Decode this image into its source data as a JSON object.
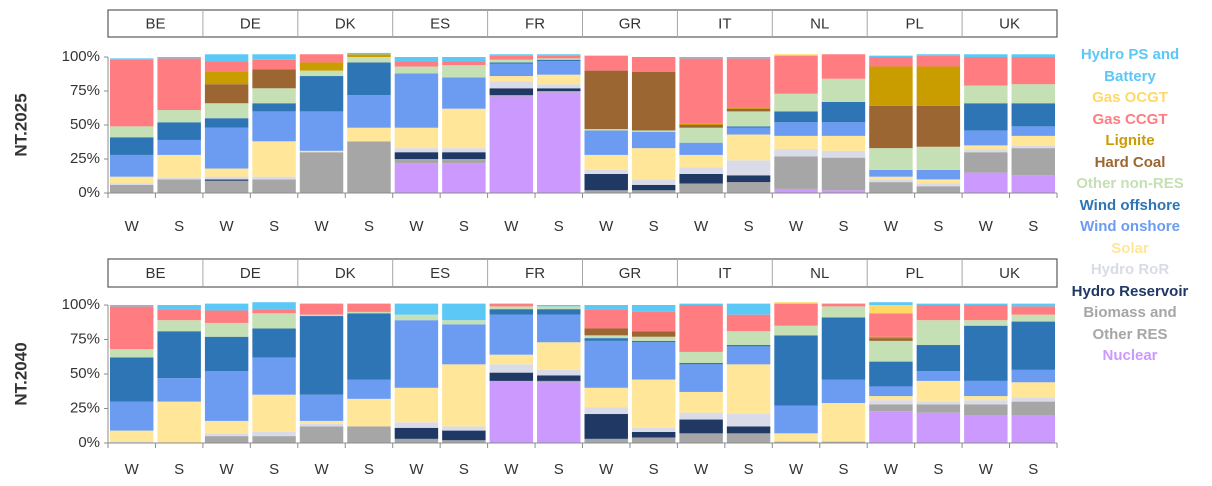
{
  "chart_data": [
    {
      "type": "bar",
      "stacked": true,
      "ylabel": "NT.2025",
      "groups": [
        "BE",
        "DE",
        "DK",
        "ES",
        "FR",
        "GR",
        "IT",
        "NL",
        "PL",
        "UK"
      ],
      "categories": [
        "W",
        "S",
        "W",
        "S",
        "W",
        "S",
        "W",
        "S",
        "W",
        "S",
        "W",
        "S",
        "W",
        "S",
        "W",
        "S",
        "W",
        "S",
        "W",
        "S"
      ],
      "ylim": [
        0,
        100
      ],
      "yticks": [
        {
          "value": 0,
          "label": "0%"
        },
        {
          "value": 25,
          "label": "25%"
        },
        {
          "value": 50,
          "label": "50%"
        },
        {
          "value": 75,
          "label": "75%"
        },
        {
          "value": 100,
          "label": "100%"
        }
      ],
      "series": [
        {
          "name": "Nuclear",
          "color": "#cc99ff",
          "values": [
            0,
            0,
            0,
            0,
            0,
            0,
            22,
            22,
            71,
            74,
            0,
            0,
            0,
            0,
            3,
            2,
            0,
            0,
            15,
            13
          ]
        },
        {
          "name": "Biomass and Other RES",
          "color": "#a6a6a6",
          "values": [
            6,
            10,
            9,
            10,
            30,
            38,
            3,
            3,
            1,
            1,
            2,
            2,
            7,
            8,
            24,
            24,
            8,
            5,
            15,
            20
          ]
        },
        {
          "name": "Hydro Reservoir",
          "color": "#1f3864",
          "values": [
            0,
            0,
            1,
            0,
            0,
            0,
            5,
            5,
            5,
            2,
            12,
            4,
            7,
            5,
            0,
            0,
            0,
            0,
            0,
            0
          ]
        },
        {
          "name": "Hydro RoR",
          "color": "#d9dce8",
          "values": [
            1,
            1,
            2,
            2,
            0,
            0,
            3,
            3,
            5,
            3,
            3,
            4,
            5,
            11,
            5,
            5,
            2,
            2,
            2,
            2
          ]
        },
        {
          "name": "Solar",
          "color": "#ffe699",
          "values": [
            5,
            17,
            6,
            26,
            1,
            10,
            15,
            29,
            4,
            7,
            11,
            23,
            9,
            19,
            10,
            11,
            2,
            3,
            3,
            7
          ]
        },
        {
          "name": "Wind onshore",
          "color": "#6b9cf2",
          "values": [
            16,
            11,
            30,
            22,
            29,
            24,
            40,
            23,
            9,
            10,
            18,
            12,
            9,
            5,
            10,
            10,
            5,
            7,
            11,
            7
          ]
        },
        {
          "name": "Wind offshore",
          "color": "#2e75b6",
          "values": [
            13,
            13,
            7,
            6,
            26,
            24,
            0,
            0,
            1,
            1,
            0,
            0,
            0,
            1,
            8,
            15,
            0,
            0,
            20,
            17
          ]
        },
        {
          "name": "Other non-RES",
          "color": "#c5e0b4",
          "values": [
            8,
            9,
            11,
            11,
            4,
            4,
            5,
            9,
            2,
            1,
            1,
            1,
            11,
            11,
            13,
            17,
            16,
            17,
            13,
            14
          ]
        },
        {
          "name": "Hard Coal",
          "color": "#9c6633",
          "values": [
            0,
            0,
            14,
            14,
            0,
            0,
            0,
            0,
            0,
            0,
            43,
            43,
            2,
            2,
            0,
            0,
            31,
            30,
            0,
            0
          ]
        },
        {
          "name": "Lignite",
          "color": "#c99d00",
          "values": [
            0,
            0,
            9,
            0,
            6,
            2,
            0,
            0,
            0,
            0,
            0,
            0,
            1,
            1,
            0,
            0,
            29,
            29,
            0,
            0
          ]
        },
        {
          "name": "Gas CCGT",
          "color": "#ff7c80",
          "values": [
            49,
            38,
            8,
            7,
            6,
            0,
            4,
            3,
            3,
            2,
            11,
            11,
            48,
            36,
            28,
            18,
            7,
            8,
            21,
            20
          ]
        },
        {
          "name": "Gas OCGT",
          "color": "#ffd966",
          "values": [
            0,
            0,
            0,
            0,
            0,
            0,
            0,
            0,
            0,
            0,
            0,
            0,
            0,
            0,
            1,
            0,
            0,
            0,
            0,
            0
          ]
        },
        {
          "name": "Hydro PS and Battery",
          "color": "#5bc8f5",
          "values": [
            1,
            1,
            5,
            4,
            0,
            1,
            3,
            3,
            1,
            1,
            0,
            0,
            1,
            1,
            0,
            0,
            1,
            1,
            2,
            2
          ]
        }
      ]
    },
    {
      "type": "bar",
      "stacked": true,
      "ylabel": "NT.2040",
      "groups": [
        "BE",
        "DE",
        "DK",
        "ES",
        "FR",
        "GR",
        "IT",
        "NL",
        "PL",
        "UK"
      ],
      "categories": [
        "W",
        "S",
        "W",
        "S",
        "W",
        "S",
        "W",
        "S",
        "W",
        "S",
        "W",
        "S",
        "W",
        "S",
        "W",
        "S",
        "W",
        "S",
        "W",
        "S"
      ],
      "ylim": [
        0,
        100
      ],
      "yticks": [
        {
          "value": 0,
          "label": "0%"
        },
        {
          "value": 25,
          "label": "25%"
        },
        {
          "value": 50,
          "label": "50%"
        },
        {
          "value": 75,
          "label": "75%"
        },
        {
          "value": 100,
          "label": "100%"
        }
      ],
      "series": [
        {
          "color": "#cc99ff",
          "values": [
            0,
            0,
            0,
            0,
            0,
            0,
            0,
            0,
            45,
            44,
            0,
            0,
            0,
            0,
            0,
            0,
            23,
            22,
            20,
            20
          ]
        },
        {
          "color": "#a6a6a6",
          "values": [
            0,
            0,
            5,
            5,
            12,
            12,
            3,
            2,
            0,
            1,
            3,
            4,
            7,
            7,
            1,
            1,
            5,
            6,
            8,
            10
          ]
        },
        {
          "color": "#1f3864",
          "values": [
            0,
            0,
            0,
            0,
            0,
            0,
            8,
            7,
            6,
            4,
            18,
            4,
            10,
            5,
            0,
            0,
            0,
            0,
            0,
            0
          ]
        },
        {
          "color": "#d9dce8",
          "values": [
            1,
            0,
            2,
            3,
            2,
            0,
            4,
            3,
            6,
            4,
            5,
            3,
            5,
            9,
            0,
            0,
            3,
            2,
            3,
            3
          ]
        },
        {
          "color": "#ffe699",
          "values": [
            8,
            30,
            9,
            27,
            2,
            20,
            25,
            45,
            7,
            20,
            14,
            35,
            15,
            36,
            6,
            28,
            3,
            15,
            3,
            11
          ]
        },
        {
          "color": "#6b9cf2",
          "values": [
            21,
            17,
            36,
            27,
            19,
            14,
            49,
            29,
            29,
            20,
            34,
            27,
            20,
            13,
            20,
            17,
            7,
            7,
            11,
            9
          ]
        },
        {
          "color": "#2e75b6",
          "values": [
            32,
            34,
            25,
            21,
            57,
            48,
            0,
            0,
            4,
            4,
            2,
            1,
            1,
            1,
            51,
            45,
            18,
            19,
            40,
            35
          ]
        },
        {
          "color": "#c5e0b4",
          "values": [
            6,
            8,
            10,
            11,
            1,
            1,
            4,
            3,
            2,
            2,
            2,
            3,
            8,
            10,
            7,
            8,
            15,
            18,
            4,
            5
          ]
        },
        {
          "color": "#9c6633",
          "values": [
            0,
            0,
            0,
            0,
            0,
            0,
            0,
            0,
            0,
            0,
            5,
            4,
            0,
            0,
            0,
            0,
            2,
            0,
            0,
            0
          ]
        },
        {
          "color": "#c99d00",
          "values": [
            0,
            0,
            0,
            0,
            0,
            0,
            0,
            0,
            0,
            0,
            0,
            0,
            0,
            0,
            0,
            0,
            1,
            0,
            0,
            0
          ]
        },
        {
          "color": "#ff7c80",
          "values": [
            31,
            8,
            9,
            3,
            8,
            6,
            0,
            0,
            2,
            0,
            14,
            14,
            34,
            12,
            16,
            2,
            17,
            11,
            11,
            6
          ]
        },
        {
          "color": "#ffd966",
          "values": [
            0,
            0,
            0,
            0,
            0,
            0,
            0,
            0,
            0,
            0,
            0,
            0,
            0,
            0,
            1,
            0,
            6,
            0,
            0,
            0
          ]
        },
        {
          "color": "#5bc8f5",
          "values": [
            1,
            3,
            5,
            5,
            0,
            0,
            8,
            12,
            0,
            1,
            3,
            5,
            1,
            8,
            0,
            0,
            2,
            1,
            1,
            2
          ]
        }
      ]
    }
  ]
}
